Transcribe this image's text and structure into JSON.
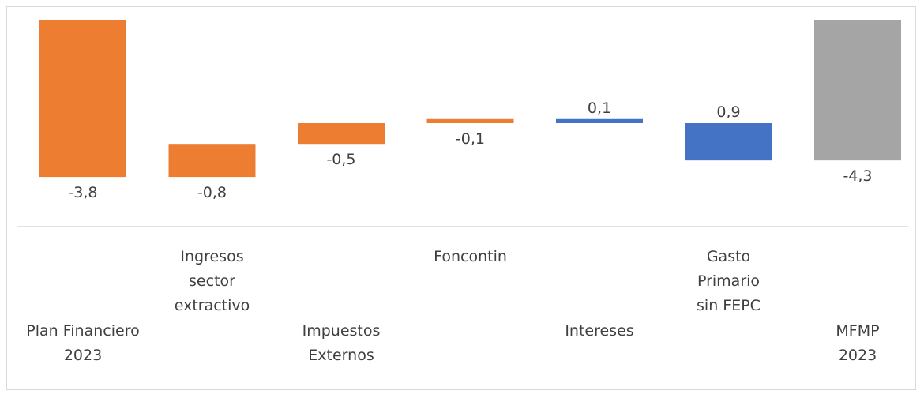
{
  "chart_data": {
    "type": "bar",
    "subtype": "waterfall",
    "categories": [
      [
        "Plan Financiero",
        "2023"
      ],
      [
        "Ingresos",
        "sector",
        "extractivo"
      ],
      [
        "Impuestos",
        "Externos"
      ],
      [
        "Foncontin"
      ],
      [
        "Intereses"
      ],
      [
        "Gasto",
        "Primario",
        "sin FEPC"
      ],
      [
        "MFMP",
        "2023"
      ]
    ],
    "values": [
      -3.8,
      -0.8,
      -0.5,
      -0.1,
      0.1,
      0.9,
      -4.3
    ],
    "value_labels": [
      "-3,8",
      "-0,8",
      "-0,5",
      "-0,1",
      "0,1",
      "0,9",
      "-4,3"
    ],
    "bar_kinds": [
      "total",
      "step",
      "step",
      "step",
      "step",
      "step",
      "total"
    ],
    "colors": {
      "decrease": "#ED7D31",
      "increase": "#4472C4",
      "total_end": "#A5A5A5",
      "axis": "#d9d9d9",
      "text": "#404040"
    },
    "ylim": [
      -5.0,
      0.0
    ],
    "grid": false,
    "legend": "none"
  }
}
